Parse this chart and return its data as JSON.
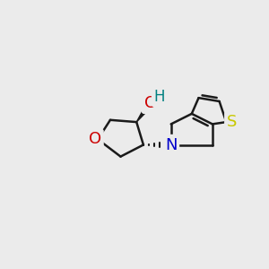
{
  "bg_color": "#ebebeb",
  "atom_colors": {
    "C": "#1a1a1a",
    "O_ring": "#cc0000",
    "O_OH": "#cc0000",
    "N": "#0000cc",
    "S": "#c8c800",
    "H": "#008080"
  },
  "bond_color": "#1a1a1a",
  "bond_width": 1.8,
  "wedge_color": "#1a1a1a",
  "font_size_atom": 13,
  "font_size_H": 12
}
